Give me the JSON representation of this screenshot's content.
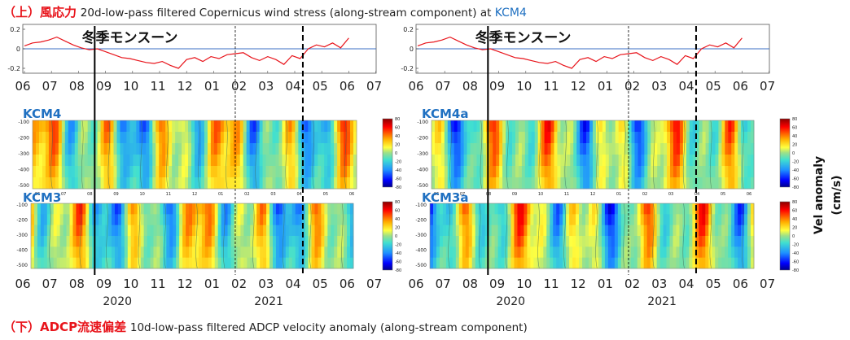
{
  "header": {
    "prefix": "（上）風応力",
    "text": "20d-low-pass filtered Copernicus wind stress (along-stream component) at ",
    "station": "KCM4"
  },
  "footer": {
    "prefix": "（下）ADCP流速偏差",
    "text": "10d-low-pass filtered ADCP velocity anomaly (along-stream component)"
  },
  "monsoon_label": "冬季モンスーン",
  "colorbar_label": {
    "line1": "Vel anomaly",
    "line2": "(cm/s)"
  },
  "colors": {
    "red_title": "#e8141b",
    "station_blue": "#1f70c1",
    "wind_line": "#e8141b",
    "zero_line": "#3b6fc6"
  },
  "chart_data": [
    {
      "type": "line",
      "panel": "wind-left",
      "ylim": [
        -0.25,
        0.25
      ],
      "yticks": [
        0.2,
        0,
        -0.2
      ],
      "ytick_labels": [
        "0.2",
        "0",
        "-0.2"
      ],
      "x_month_labels": [
        "06",
        "07",
        "08",
        "09",
        "10",
        "11",
        "12",
        "01",
        "02",
        "03",
        "04",
        "05",
        "06",
        "07"
      ],
      "x_month_index_range": [
        0,
        13
      ],
      "vlines": [
        {
          "month_index": 2.6,
          "style": "solid"
        },
        {
          "month_index": 7.8,
          "style": "thin-dashed"
        },
        {
          "month_index": 10.3,
          "style": "dashed"
        }
      ],
      "series": [
        {
          "x": [
            0,
            0.3,
            0.6,
            0.9,
            1.2,
            1.5,
            1.8,
            2.1,
            2.4,
            2.7,
            3.0,
            3.3,
            3.6,
            3.9,
            4.2,
            4.5,
            4.8,
            5.1,
            5.4,
            5.7,
            6.0,
            6.3,
            6.6,
            6.9,
            7.2,
            7.5,
            7.8,
            8.1,
            8.4,
            8.7,
            9.0,
            9.3,
            9.6,
            9.9,
            10.2,
            10.5,
            10.8,
            11.1,
            11.4,
            11.7,
            12.0
          ],
          "y": [
            0.03,
            0.06,
            0.07,
            0.09,
            0.12,
            0.08,
            0.04,
            0.01,
            -0.01,
            0.0,
            -0.03,
            -0.06,
            -0.09,
            -0.1,
            -0.12,
            -0.14,
            -0.15,
            -0.13,
            -0.17,
            -0.2,
            -0.11,
            -0.09,
            -0.13,
            -0.08,
            -0.1,
            -0.06,
            -0.05,
            -0.04,
            -0.09,
            -0.12,
            -0.08,
            -0.11,
            -0.16,
            -0.07,
            -0.1,
            0.0,
            0.04,
            0.02,
            0.06,
            0.01,
            0.11
          ]
        }
      ]
    },
    {
      "type": "line",
      "panel": "wind-right",
      "ylim": [
        -0.25,
        0.25
      ],
      "yticks": [
        0.2,
        0,
        -0.2
      ],
      "ytick_labels": [
        "0.2",
        "0",
        "-0.2"
      ],
      "x_month_labels": [
        "06",
        "07",
        "08",
        "09",
        "10",
        "11",
        "12",
        "01",
        "02",
        "03",
        "04",
        "05",
        "06",
        "07"
      ],
      "x_month_index_range": [
        0,
        13
      ],
      "vlines": [
        {
          "month_index": 2.6,
          "style": "solid"
        },
        {
          "month_index": 7.8,
          "style": "thin-dashed"
        },
        {
          "month_index": 10.3,
          "style": "dashed"
        }
      ],
      "series": [
        {
          "x": [
            0,
            0.3,
            0.6,
            0.9,
            1.2,
            1.5,
            1.8,
            2.1,
            2.4,
            2.7,
            3.0,
            3.3,
            3.6,
            3.9,
            4.2,
            4.5,
            4.8,
            5.1,
            5.4,
            5.7,
            6.0,
            6.3,
            6.6,
            6.9,
            7.2,
            7.5,
            7.8,
            8.1,
            8.4,
            8.7,
            9.0,
            9.3,
            9.6,
            9.9,
            10.2,
            10.5,
            10.8,
            11.1,
            11.4,
            11.7,
            12.0
          ],
          "y": [
            0.03,
            0.06,
            0.07,
            0.09,
            0.12,
            0.08,
            0.04,
            0.01,
            -0.01,
            0.0,
            -0.03,
            -0.06,
            -0.09,
            -0.1,
            -0.12,
            -0.14,
            -0.15,
            -0.13,
            -0.17,
            -0.2,
            -0.11,
            -0.09,
            -0.13,
            -0.08,
            -0.1,
            -0.06,
            -0.05,
            -0.04,
            -0.09,
            -0.12,
            -0.08,
            -0.11,
            -0.16,
            -0.07,
            -0.1,
            0.0,
            0.04,
            0.02,
            0.06,
            0.01,
            0.11
          ]
        }
      ]
    },
    {
      "type": "heatmap",
      "panel": "KCM4",
      "label": "KCM4",
      "yticks": [
        -100,
        -200,
        -300,
        -400,
        -500
      ],
      "ytick_labels": [
        "-100",
        "-200",
        "-300",
        "-400",
        "-500"
      ],
      "colorbar_ticks": [
        "80",
        "60",
        "40",
        "20",
        "0",
        "-20",
        "-40",
        "-60",
        "-80"
      ],
      "x_month_labels_small": [
        "06",
        "07",
        "08",
        "09",
        "10",
        "11",
        "12",
        "01",
        "02",
        "03",
        "04",
        "05",
        "06"
      ]
    },
    {
      "type": "heatmap",
      "panel": "KCM4a",
      "label": "KCM4a",
      "yticks": [
        -100,
        -200,
        -300,
        -400,
        -500
      ],
      "ytick_labels": [
        "-100",
        "-200",
        "-300",
        "-400",
        "-500"
      ],
      "colorbar_ticks": [
        "80",
        "60",
        "40",
        "20",
        "0",
        "-20",
        "-40",
        "-60",
        "-80"
      ],
      "x_month_labels_small": [
        "06",
        "07",
        "08",
        "09",
        "10",
        "11",
        "12",
        "01",
        "02",
        "03",
        "04",
        "05",
        "06"
      ]
    },
    {
      "type": "heatmap",
      "panel": "KCM3",
      "label": "KCM3",
      "yticks": [
        -100,
        -200,
        -300,
        -400,
        -500
      ],
      "ytick_labels": [
        "-100",
        "-200",
        "-300",
        "-400",
        "-500"
      ],
      "colorbar_ticks": [
        "80",
        "60",
        "40",
        "20",
        "0",
        "-20",
        "-40",
        "-60",
        "-80"
      ]
    },
    {
      "type": "heatmap",
      "panel": "KCM3a",
      "label": "KCM3a",
      "yticks": [
        -100,
        -200,
        -300,
        -400,
        -500
      ],
      "ytick_labels": [
        "-100",
        "-200",
        "-300",
        "-400",
        "-500"
      ],
      "colorbar_ticks": [
        "80",
        "60",
        "40",
        "20",
        "0",
        "-20",
        "-40",
        "-60",
        "-80"
      ]
    }
  ],
  "bottom_axis": {
    "month_labels": [
      "06",
      "07",
      "08",
      "09",
      "10",
      "11",
      "12",
      "01",
      "02",
      "03",
      "04",
      "05",
      "06",
      "07"
    ],
    "years": [
      "2020",
      "2021"
    ]
  }
}
